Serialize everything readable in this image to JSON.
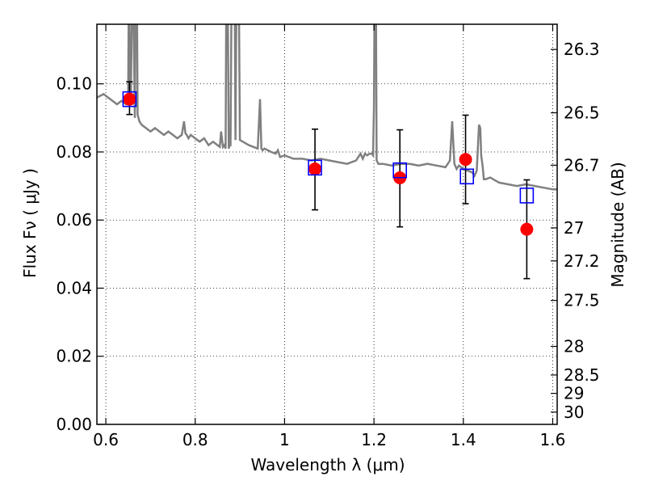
{
  "chart_data": {
    "type": "scatter",
    "xlabel": "Wavelength  λ (μm)",
    "ylabel": "Flux  Fν (  μJy )",
    "ylabel_right": "Magnitude (AB)",
    "xlim": [
      0.58,
      1.61
    ],
    "ylim": [
      0.0,
      0.1175
    ],
    "grid": true,
    "x_ticks": [
      0.6,
      0.8,
      1.0,
      1.2,
      1.4,
      1.6
    ],
    "x_tick_labels": [
      "0.6",
      "0.8",
      "1",
      "1.2",
      "1.4",
      "1.6"
    ],
    "y_ticks": [
      0.0,
      0.02,
      0.04,
      0.06,
      0.08,
      0.1
    ],
    "y_tick_labels": [
      "0.00",
      "0.02",
      "0.04",
      "0.06",
      "0.08",
      "0.10"
    ],
    "right_ticks": [
      {
        "label": "26.3",
        "flux": 0.1101
      },
      {
        "label": "26.5",
        "flux": 0.0915
      },
      {
        "label": "26.7",
        "flux": 0.0761
      },
      {
        "label": "27",
        "flux": 0.0577
      },
      {
        "label": "27.2",
        "flux": 0.048
      },
      {
        "label": "27.5",
        "flux": 0.0364
      },
      {
        "label": "28",
        "flux": 0.0229
      },
      {
        "label": "28.5",
        "flux": 0.0145
      },
      {
        "label": "29",
        "flux": 0.0091
      },
      {
        "label": "30",
        "flux": 0.0036
      }
    ],
    "series": [
      {
        "kind": "line",
        "color": "#808080",
        "x": [
          0.58,
          0.595,
          0.605,
          0.615,
          0.625,
          0.635,
          0.645,
          0.65,
          0.652,
          0.654,
          0.656,
          0.66,
          0.665,
          0.667,
          0.669,
          0.671,
          0.675,
          0.68,
          0.69,
          0.7,
          0.71,
          0.72,
          0.73,
          0.74,
          0.75,
          0.76,
          0.77,
          0.775,
          0.778,
          0.781,
          0.785,
          0.79,
          0.8,
          0.81,
          0.82,
          0.83,
          0.84,
          0.85,
          0.855,
          0.858,
          0.862,
          0.865,
          0.868,
          0.87,
          0.872,
          0.875,
          0.877,
          0.879,
          0.882,
          0.885,
          0.888,
          0.89,
          0.893,
          0.897,
          0.9,
          0.92,
          0.94,
          0.945,
          0.948,
          0.951,
          0.955,
          0.97,
          0.98,
          0.985,
          0.99,
          1.0,
          1.02,
          1.04,
          1.06,
          1.08,
          1.1,
          1.12,
          1.14,
          1.16,
          1.17,
          1.175,
          1.18,
          1.185,
          1.19,
          1.195,
          1.198,
          1.2,
          1.202,
          1.204,
          1.206,
          1.21,
          1.22,
          1.24,
          1.26,
          1.28,
          1.3,
          1.32,
          1.34,
          1.36,
          1.37,
          1.375,
          1.38,
          1.385,
          1.39,
          1.4,
          1.42,
          1.425,
          1.43,
          1.435,
          1.438,
          1.44,
          1.443,
          1.446,
          1.45,
          1.46,
          1.48,
          1.5,
          1.52,
          1.54,
          1.56,
          1.58,
          1.6,
          1.61
        ],
        "y": [
          0.096,
          0.097,
          0.096,
          0.095,
          0.094,
          0.095,
          0.094,
          0.095,
          0.14,
          0.094,
          0.096,
          0.14,
          0.09,
          0.14,
          0.14,
          0.091,
          0.089,
          0.088,
          0.087,
          0.086,
          0.087,
          0.086,
          0.085,
          0.086,
          0.085,
          0.084,
          0.085,
          0.089,
          0.0855,
          0.085,
          0.084,
          0.085,
          0.084,
          0.083,
          0.084,
          0.082,
          0.083,
          0.082,
          0.0815,
          0.086,
          0.0815,
          0.082,
          0.081,
          0.14,
          0.14,
          0.081,
          0.082,
          0.082,
          0.14,
          0.14,
          0.14,
          0.0835,
          0.14,
          0.14,
          0.0835,
          0.082,
          0.081,
          0.0955,
          0.081,
          0.0805,
          0.081,
          0.08,
          0.0795,
          0.0805,
          0.0785,
          0.079,
          0.078,
          0.078,
          0.0775,
          0.078,
          0.0775,
          0.077,
          0.0765,
          0.0775,
          0.0795,
          0.078,
          0.0795,
          0.079,
          0.0795,
          0.0795,
          0.079,
          0.093,
          0.14,
          0.14,
          0.0775,
          0.0765,
          0.0765,
          0.076,
          0.0765,
          0.0765,
          0.076,
          0.0765,
          0.076,
          0.0755,
          0.0775,
          0.089,
          0.0765,
          0.075,
          0.076,
          0.075,
          0.074,
          0.073,
          0.0745,
          0.088,
          0.087,
          0.079,
          0.076,
          0.072,
          0.072,
          0.0725,
          0.071,
          0.0705,
          0.07,
          0.0705,
          0.07,
          0.0695,
          0.069,
          0.069
        ]
      },
      {
        "kind": "square-marker",
        "color": "#0000ff",
        "x": [
          0.653,
          1.068,
          1.258,
          1.408,
          1.542
        ],
        "y": [
          0.0955,
          0.0754,
          0.0746,
          0.0728,
          0.0672
        ]
      },
      {
        "kind": "circle-marker-errorbar",
        "color": "#ff0000",
        "x": [
          0.653,
          1.068,
          1.258,
          1.405,
          1.542
        ],
        "y": [
          0.0955,
          0.075,
          0.0724,
          0.0778,
          0.0573
        ],
        "yerr_low": [
          0.091,
          0.063,
          0.058,
          0.0648,
          0.0428
        ],
        "yerr_high": [
          0.1006,
          0.0867,
          0.0865,
          0.0908,
          0.0718
        ]
      }
    ]
  }
}
